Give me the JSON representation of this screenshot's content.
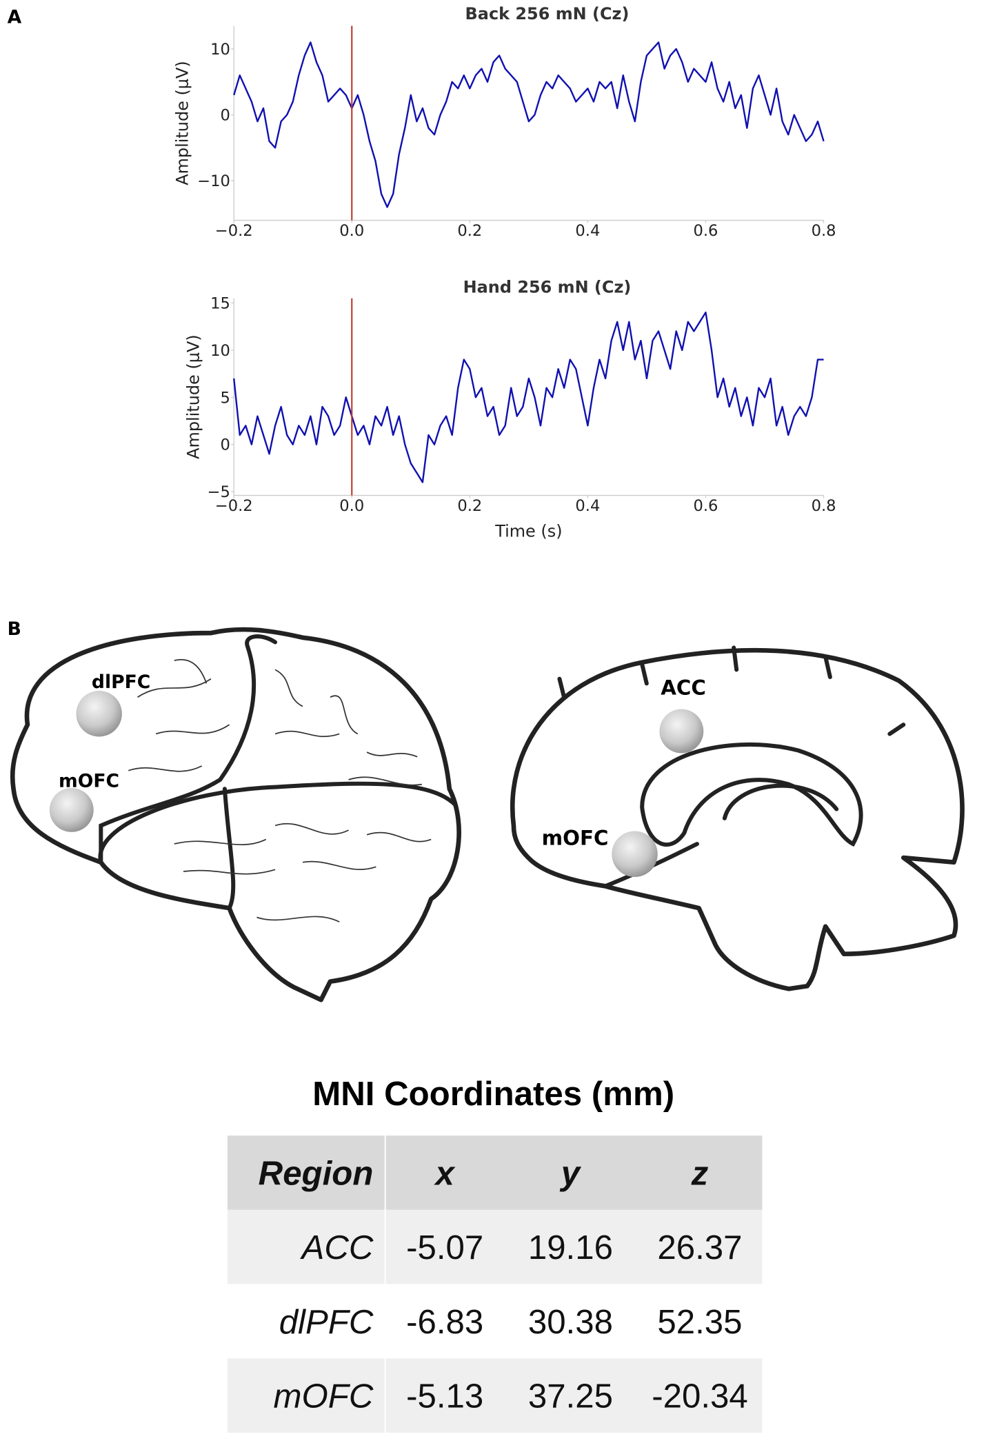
{
  "panels": [
    "A",
    "B"
  ],
  "chart_data": [
    {
      "type": "line",
      "title": "Back 256 mN (Cz)",
      "y_label": "Amplitude (μV)",
      "color": "#1010b0",
      "vlines": [
        0
      ],
      "vline_color": "#c0392b",
      "x": [
        -0.2,
        -0.19,
        -0.18,
        -0.17,
        -0.16,
        -0.15,
        -0.14,
        -0.13,
        -0.12,
        -0.11,
        -0.1,
        -0.09,
        -0.08,
        -0.07,
        -0.06,
        -0.05,
        -0.04,
        -0.03,
        -0.02,
        -0.01,
        0,
        0.01,
        0.02,
        0.03,
        0.04,
        0.05,
        0.06,
        0.07,
        0.08,
        0.09,
        0.1,
        0.11,
        0.12,
        0.13,
        0.14,
        0.15,
        0.16,
        0.17,
        0.18,
        0.19,
        0.2,
        0.21,
        0.22,
        0.23,
        0.24,
        0.25,
        0.26,
        0.27,
        0.28,
        0.29,
        0.3,
        0.31,
        0.32,
        0.33,
        0.34,
        0.35,
        0.36,
        0.37,
        0.38,
        0.39,
        0.4,
        0.41,
        0.42,
        0.43,
        0.44,
        0.45,
        0.46,
        0.47,
        0.48,
        0.49,
        0.5,
        0.51,
        0.52,
        0.53,
        0.54,
        0.55,
        0.56,
        0.57,
        0.58,
        0.59,
        0.6,
        0.61,
        0.62,
        0.63,
        0.64,
        0.65,
        0.66,
        0.67,
        0.68,
        0.69,
        0.7,
        0.71,
        0.72,
        0.73,
        0.74,
        0.75,
        0.76,
        0.77,
        0.78,
        0.79,
        0.8
      ],
      "values": [
        3,
        6,
        4,
        2,
        -1,
        1,
        -4,
        -5,
        -1,
        0,
        2,
        6,
        9,
        11,
        8,
        6,
        2,
        3,
        4,
        3,
        1,
        3,
        0,
        -4,
        -7,
        -12,
        -14,
        -12,
        -6,
        -2,
        3,
        -1,
        1,
        -2,
        -3,
        0,
        2,
        5,
        4,
        6,
        4,
        6,
        7,
        5,
        8,
        9,
        7,
        6,
        5,
        2,
        -1,
        0,
        3,
        5,
        4,
        6,
        5,
        4,
        2,
        3,
        4,
        2,
        5,
        4,
        5,
        1,
        6,
        2,
        -1,
        5,
        9,
        10,
        11,
        7,
        9,
        10,
        8,
        5,
        7,
        6,
        5,
        8,
        4,
        2,
        5,
        1,
        3,
        -2,
        4,
        6,
        3,
        0,
        4,
        -1,
        -3,
        0,
        -2,
        -4,
        -3,
        -1,
        -4
      ],
      "xlim": [
        -0.2,
        0.8
      ],
      "xticks": [
        {
          "value": -0.2,
          "label": "−0.2"
        },
        {
          "value": 0,
          "label": "0.0"
        },
        0.2,
        0.4,
        0.6,
        0.8
      ],
      "ylim": [
        -16,
        13.5
      ],
      "yticks": [
        {
          "value": -10,
          "label": "−10"
        },
        0,
        10
      ]
    },
    {
      "type": "line",
      "title": "Hand 256 mN (Cz)",
      "y_label": "Amplitude (μV)",
      "x_label": "Time (s)",
      "color": "#1010b0",
      "vlines": [
        0
      ],
      "vline_color": "#c0392b",
      "x": [
        -0.2,
        -0.19,
        -0.18,
        -0.17,
        -0.16,
        -0.15,
        -0.14,
        -0.13,
        -0.12,
        -0.11,
        -0.1,
        -0.09,
        -0.08,
        -0.07,
        -0.06,
        -0.05,
        -0.04,
        -0.03,
        -0.02,
        -0.01,
        0,
        0.01,
        0.02,
        0.03,
        0.04,
        0.05,
        0.06,
        0.07,
        0.08,
        0.09,
        0.1,
        0.11,
        0.12,
        0.13,
        0.14,
        0.15,
        0.16,
        0.17,
        0.18,
        0.19,
        0.2,
        0.21,
        0.22,
        0.23,
        0.24,
        0.25,
        0.26,
        0.27,
        0.28,
        0.29,
        0.3,
        0.31,
        0.32,
        0.33,
        0.34,
        0.35,
        0.36,
        0.37,
        0.38,
        0.39,
        0.4,
        0.41,
        0.42,
        0.43,
        0.44,
        0.45,
        0.46,
        0.47,
        0.48,
        0.49,
        0.5,
        0.51,
        0.52,
        0.53,
        0.54,
        0.55,
        0.56,
        0.57,
        0.58,
        0.59,
        0.6,
        0.61,
        0.62,
        0.63,
        0.64,
        0.65,
        0.66,
        0.67,
        0.68,
        0.69,
        0.7,
        0.71,
        0.72,
        0.73,
        0.74,
        0.75,
        0.76,
        0.77,
        0.78,
        0.79,
        0.8
      ],
      "values": [
        7,
        1,
        2,
        0,
        3,
        1,
        -1,
        2,
        4,
        1,
        0,
        2,
        1,
        3,
        0,
        4,
        3,
        1,
        2,
        5,
        3,
        1,
        2,
        0,
        3,
        2,
        4,
        1,
        3,
        0,
        -2,
        -3,
        -4,
        1,
        0,
        2,
        3,
        1,
        6,
        9,
        8,
        5,
        6,
        3,
        4,
        1,
        2,
        6,
        3,
        4,
        7,
        5,
        2,
        6,
        5,
        8,
        6,
        9,
        8,
        5,
        2,
        6,
        9,
        7,
        11,
        13,
        10,
        13,
        9,
        11,
        7,
        11,
        12,
        10,
        8,
        12,
        10,
        13,
        12,
        13,
        14,
        10,
        5,
        7,
        4,
        6,
        3,
        5,
        2,
        6,
        5,
        7,
        2,
        4,
        1,
        3,
        4,
        3,
        5,
        9,
        9
      ],
      "xlim": [
        -0.2,
        0.8
      ],
      "xticks": [
        {
          "value": -0.2,
          "label": "−0.2"
        },
        {
          "value": 0,
          "label": "0.0"
        },
        0.2,
        0.4,
        0.6,
        0.8
      ],
      "ylim": [
        -5.4,
        15.5
      ],
      "yticks": [
        {
          "value": -5,
          "label": "−5"
        },
        0,
        5,
        10,
        15
      ]
    }
  ],
  "brain_labels": [
    "dlPFC",
    "mOFC",
    "ACC",
    "mOFC"
  ],
  "table": {
    "title": "MNI Coordinates (mm)",
    "header": [
      "Region",
      "x",
      "y",
      "z"
    ],
    "rows": [
      [
        "ACC",
        -5.07,
        19.16,
        26.37
      ],
      [
        "dlPFC",
        -6.83,
        30.38,
        52.35
      ],
      [
        "mOFC",
        -5.13,
        37.25,
        -20.34
      ]
    ]
  }
}
